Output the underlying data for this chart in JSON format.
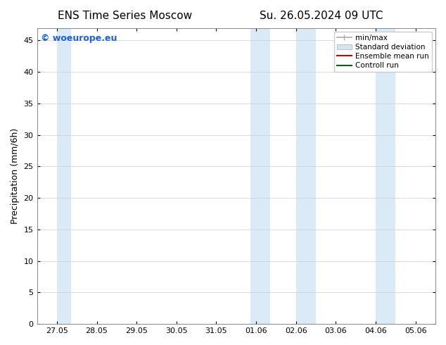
{
  "title_left": "ENS Time Series Moscow",
  "title_right": "Su. 26.05.2024 09 UTC",
  "ylabel": "Precipitation (mm/6h)",
  "bg_color": "#ffffff",
  "plot_bg_color": "#ffffff",
  "ylim": [
    0,
    47
  ],
  "yticks": [
    0,
    5,
    10,
    15,
    20,
    25,
    30,
    35,
    40,
    45
  ],
  "xtick_labels": [
    "27.05",
    "28.05",
    "29.05",
    "30.05",
    "31.05",
    "01.06",
    "02.06",
    "03.06",
    "04.06",
    "05.06"
  ],
  "x_positions": [
    0,
    1,
    2,
    3,
    4,
    5,
    6,
    7,
    8,
    9
  ],
  "xlim": [
    -0.5,
    9.5
  ],
  "shaded_regions": [
    [
      0.0,
      0.35
    ],
    [
      4.85,
      5.35
    ],
    [
      6.0,
      6.5
    ],
    [
      8.0,
      8.5
    ]
  ],
  "shade_color": "#daeaf7",
  "watermark": "© woeurope.eu",
  "watermark_color": "#1a5fe0",
  "title_fontsize": 11,
  "axis_fontsize": 9,
  "tick_fontsize": 8,
  "legend_gray": "#aaaaaa",
  "legend_lightblue": "#d0e8f5"
}
